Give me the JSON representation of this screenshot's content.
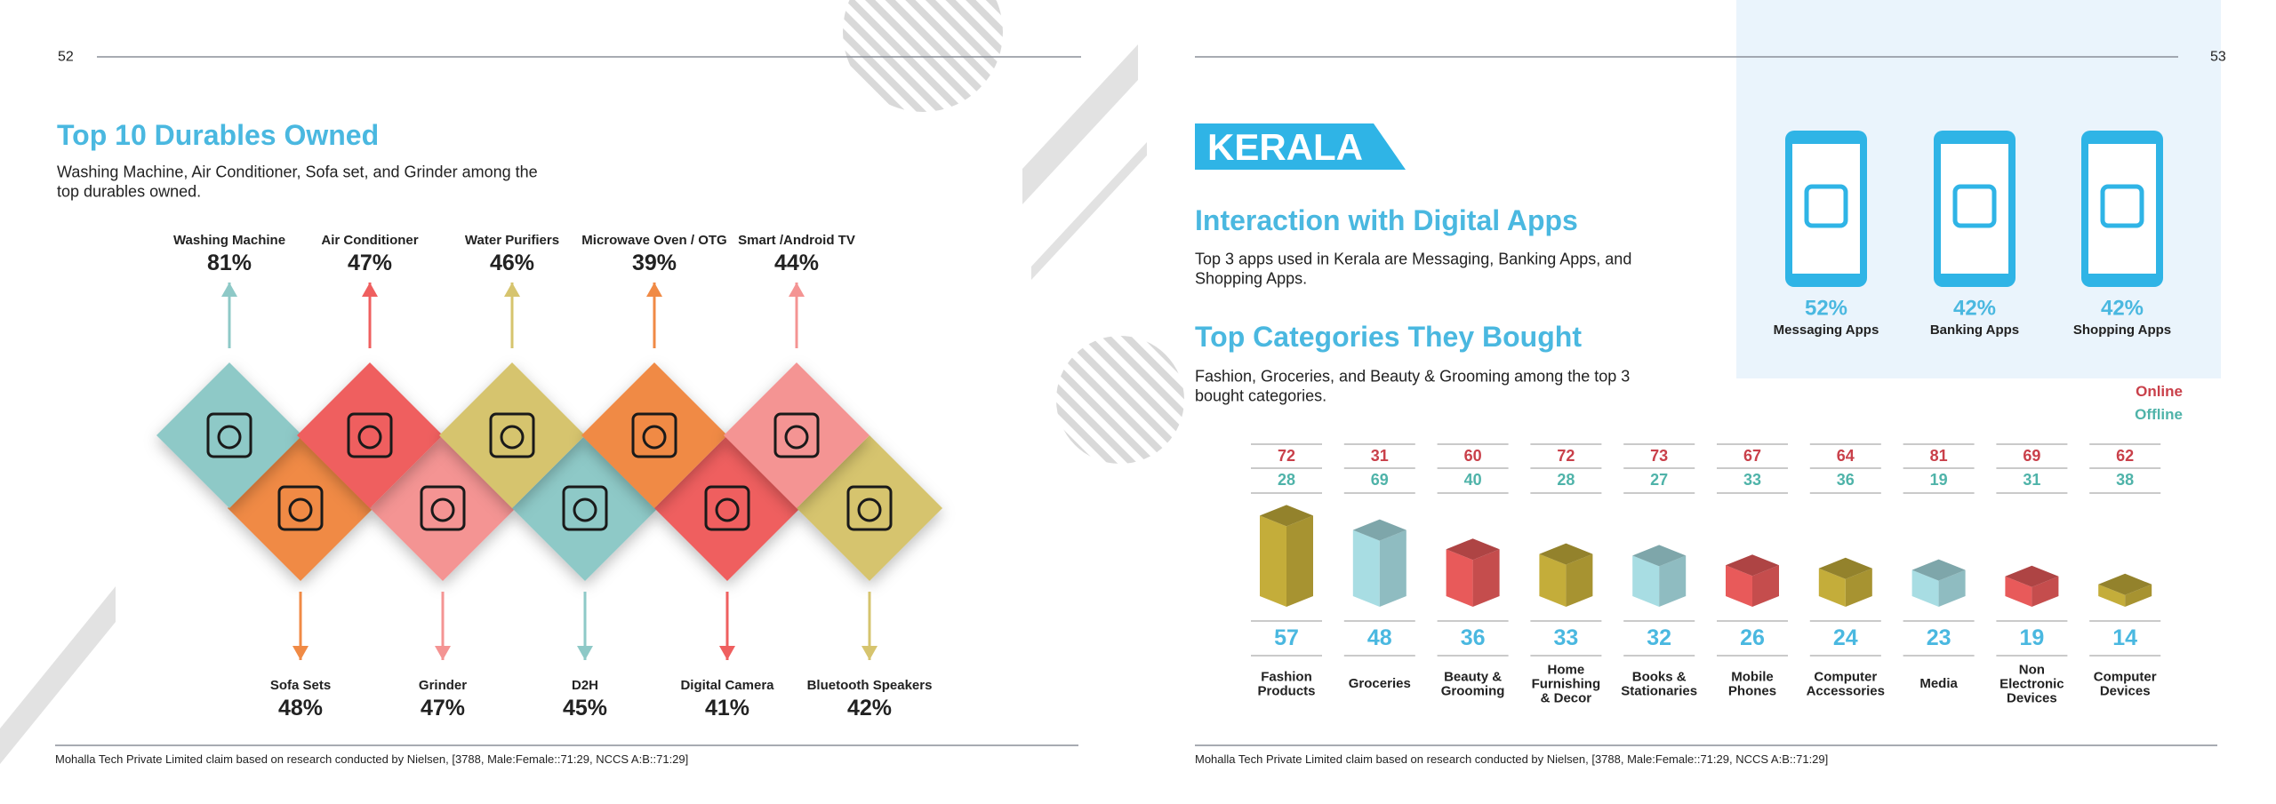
{
  "left": {
    "page_number": "52",
    "title": "Top 10 Durables Owned",
    "description": "Washing Machine, Air Conditioner, Sofa set, and Grinder among the top durables owned.",
    "durables_top": [
      {
        "name": "Washing Machine",
        "percent": "81%",
        "color": "#8ec9c7"
      },
      {
        "name": "Air Conditioner",
        "percent": "47%",
        "color": "#ef5f5f"
      },
      {
        "name": "Water Purifiers",
        "percent": "46%",
        "color": "#d6c46e"
      },
      {
        "name": "Microwave Oven / OTG",
        "percent": "39%",
        "color": "#f08a45"
      },
      {
        "name": "Smart /Android TV",
        "percent": "44%",
        "color": "#f49493"
      }
    ],
    "durables_bottom": [
      {
        "name": "Sofa Sets",
        "percent": "48%",
        "color": "#f08a45"
      },
      {
        "name": "Grinder",
        "percent": "47%",
        "color": "#f49493"
      },
      {
        "name": "D2H",
        "percent": "45%",
        "color": "#8ec9c7"
      },
      {
        "name": "Digital Camera",
        "percent": "41%",
        "color": "#ef5f5f"
      },
      {
        "name": "Bluetooth Speakers",
        "percent": "42%",
        "color": "#d6c46e"
      }
    ],
    "footnote": "Mohalla Tech Private Limited claim based on research conducted by Nielsen, [3788, Male:Female::71:29, NCCS A:B::71:29]"
  },
  "right": {
    "page_number": "53",
    "region": "KERALA",
    "apps_title": "Interaction with Digital Apps",
    "apps_description": "Top 3 apps used in Kerala are Messaging, Banking Apps, and Shopping Apps.",
    "apps": [
      {
        "percent": "52%",
        "label": "Messaging Apps"
      },
      {
        "percent": "42%",
        "label": "Banking Apps"
      },
      {
        "percent": "42%",
        "label": "Shopping Apps"
      }
    ],
    "categories_title": "Top Categories They Bought",
    "categories_description": "Fashion, Groceries, and Beauty & Grooming among the top 3 bought categories.",
    "legend": {
      "online": "Online",
      "offline": "Offline",
      "online_color": "#c9404a",
      "offline_color": "#4fb3a9"
    },
    "categories": [
      {
        "name": "Fashion Products",
        "online": 72,
        "offline": 28,
        "total": 57,
        "color": "#c4ad3a"
      },
      {
        "name": "Groceries",
        "online": 31,
        "offline": 69,
        "total": 48,
        "color": "#a8dde3"
      },
      {
        "name": "Beauty & Grooming",
        "online": 60,
        "offline": 40,
        "total": 36,
        "color": "#e85a5a"
      },
      {
        "name": "Home Furnishing & Decor",
        "online": 72,
        "offline": 28,
        "total": 33,
        "color": "#c4ad3a"
      },
      {
        "name": "Books & Stationaries",
        "online": 73,
        "offline": 27,
        "total": 32,
        "color": "#a8dde3"
      },
      {
        "name": "Mobile Phones",
        "online": 67,
        "offline": 33,
        "total": 26,
        "color": "#e85a5a"
      },
      {
        "name": "Computer Accessories",
        "online": 64,
        "offline": 36,
        "total": 24,
        "color": "#c4ad3a"
      },
      {
        "name": "Media",
        "online": 81,
        "offline": 19,
        "total": 23,
        "color": "#a8dde3"
      },
      {
        "name": "Non Electronic Devices",
        "online": 69,
        "offline": 31,
        "total": 19,
        "color": "#e85a5a"
      },
      {
        "name": "Computer Devices",
        "online": 62,
        "offline": 38,
        "total": 14,
        "color": "#c4ad3a"
      }
    ],
    "footnote": "Mohalla Tech Private Limited claim based on research conducted by Nielsen, [3788, Male:Female::71:29, NCCS A:B::71:29]"
  }
}
